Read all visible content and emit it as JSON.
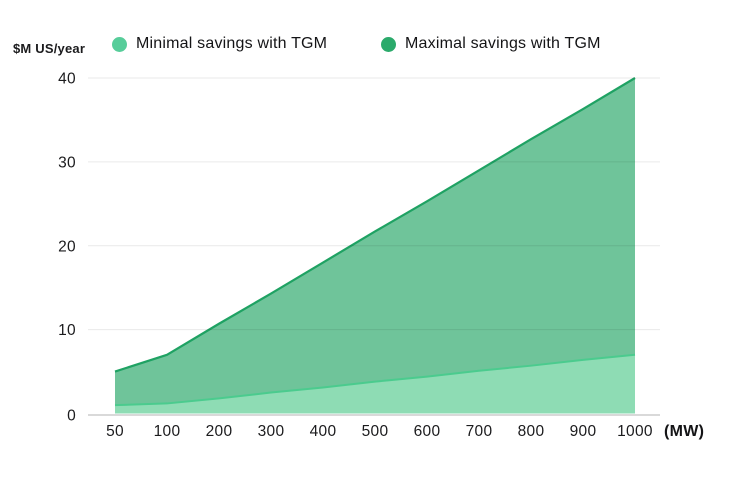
{
  "chart_data": {
    "type": "area",
    "title": "",
    "ylabel": "$M US/year",
    "xlabel": "(MW)",
    "categories": [
      50,
      100,
      200,
      300,
      400,
      500,
      600,
      700,
      800,
      900,
      1000
    ],
    "series": [
      {
        "name": "Minimal savings with TGM",
        "values": [
          1,
          1.2,
          1.8,
          2.5,
          3.1,
          3.8,
          4.4,
          5.1,
          5.7,
          6.4,
          7
        ],
        "fill": "#8edcb4",
        "stroke": "#4bcb8e",
        "legend_dot": "#57cd9a"
      },
      {
        "name": "Maximal savings with TGM",
        "values": [
          5,
          7,
          10.7,
          14.3,
          18,
          21.7,
          25.3,
          29,
          32.7,
          36.3,
          40
        ],
        "fill": "#6fc49a",
        "stroke": "#1fa263",
        "legend_dot": "#2baa6b"
      }
    ],
    "ylim": [
      0,
      40
    ],
    "yticks": [
      0,
      10,
      20,
      30,
      40
    ],
    "grid": true,
    "legend_position": "top"
  },
  "colors": {
    "gridline": "rgba(0,0,0,0.085)",
    "axis_line": "rgba(0,0,0,0.2)",
    "text": "#1b1b1d",
    "background": "#ffffff"
  }
}
